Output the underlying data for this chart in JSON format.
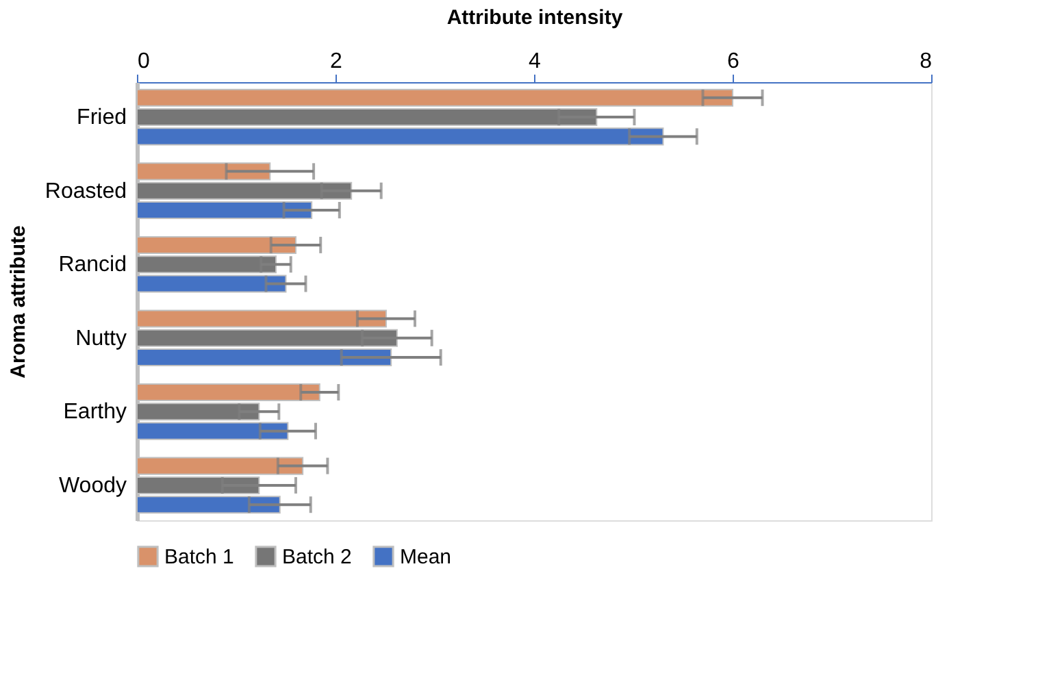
{
  "chart_data": {
    "type": "bar",
    "orientation": "horizontal",
    "xlabel": "Attribute intensity",
    "ylabel": "Aroma attribute",
    "categories": [
      "Fried",
      "Roasted",
      "Rancid",
      "Nutty",
      "Earthy",
      "Woody"
    ],
    "series": [
      {
        "name": "Batch 1",
        "color": "#d9926a",
        "values": [
          6.0,
          1.34,
          1.6,
          2.51,
          1.84,
          1.67
        ],
        "errors": [
          0.3,
          0.44,
          0.25,
          0.29,
          0.19,
          0.25
        ]
      },
      {
        "name": "Batch 2",
        "color": "#767676",
        "values": [
          4.63,
          2.16,
          1.4,
          2.62,
          1.23,
          1.23
        ],
        "errors": [
          0.38,
          0.3,
          0.15,
          0.35,
          0.2,
          0.37
        ]
      },
      {
        "name": "Mean",
        "color": "#4472c4",
        "values": [
          5.3,
          1.76,
          1.5,
          2.56,
          1.52,
          1.44
        ],
        "errors": [
          0.34,
          0.28,
          0.2,
          0.5,
          0.28,
          0.31
        ]
      }
    ],
    "xlim": [
      0,
      8
    ],
    "xticks": [
      0,
      2,
      4,
      6,
      8
    ],
    "grid": false,
    "legend": "bottom"
  }
}
